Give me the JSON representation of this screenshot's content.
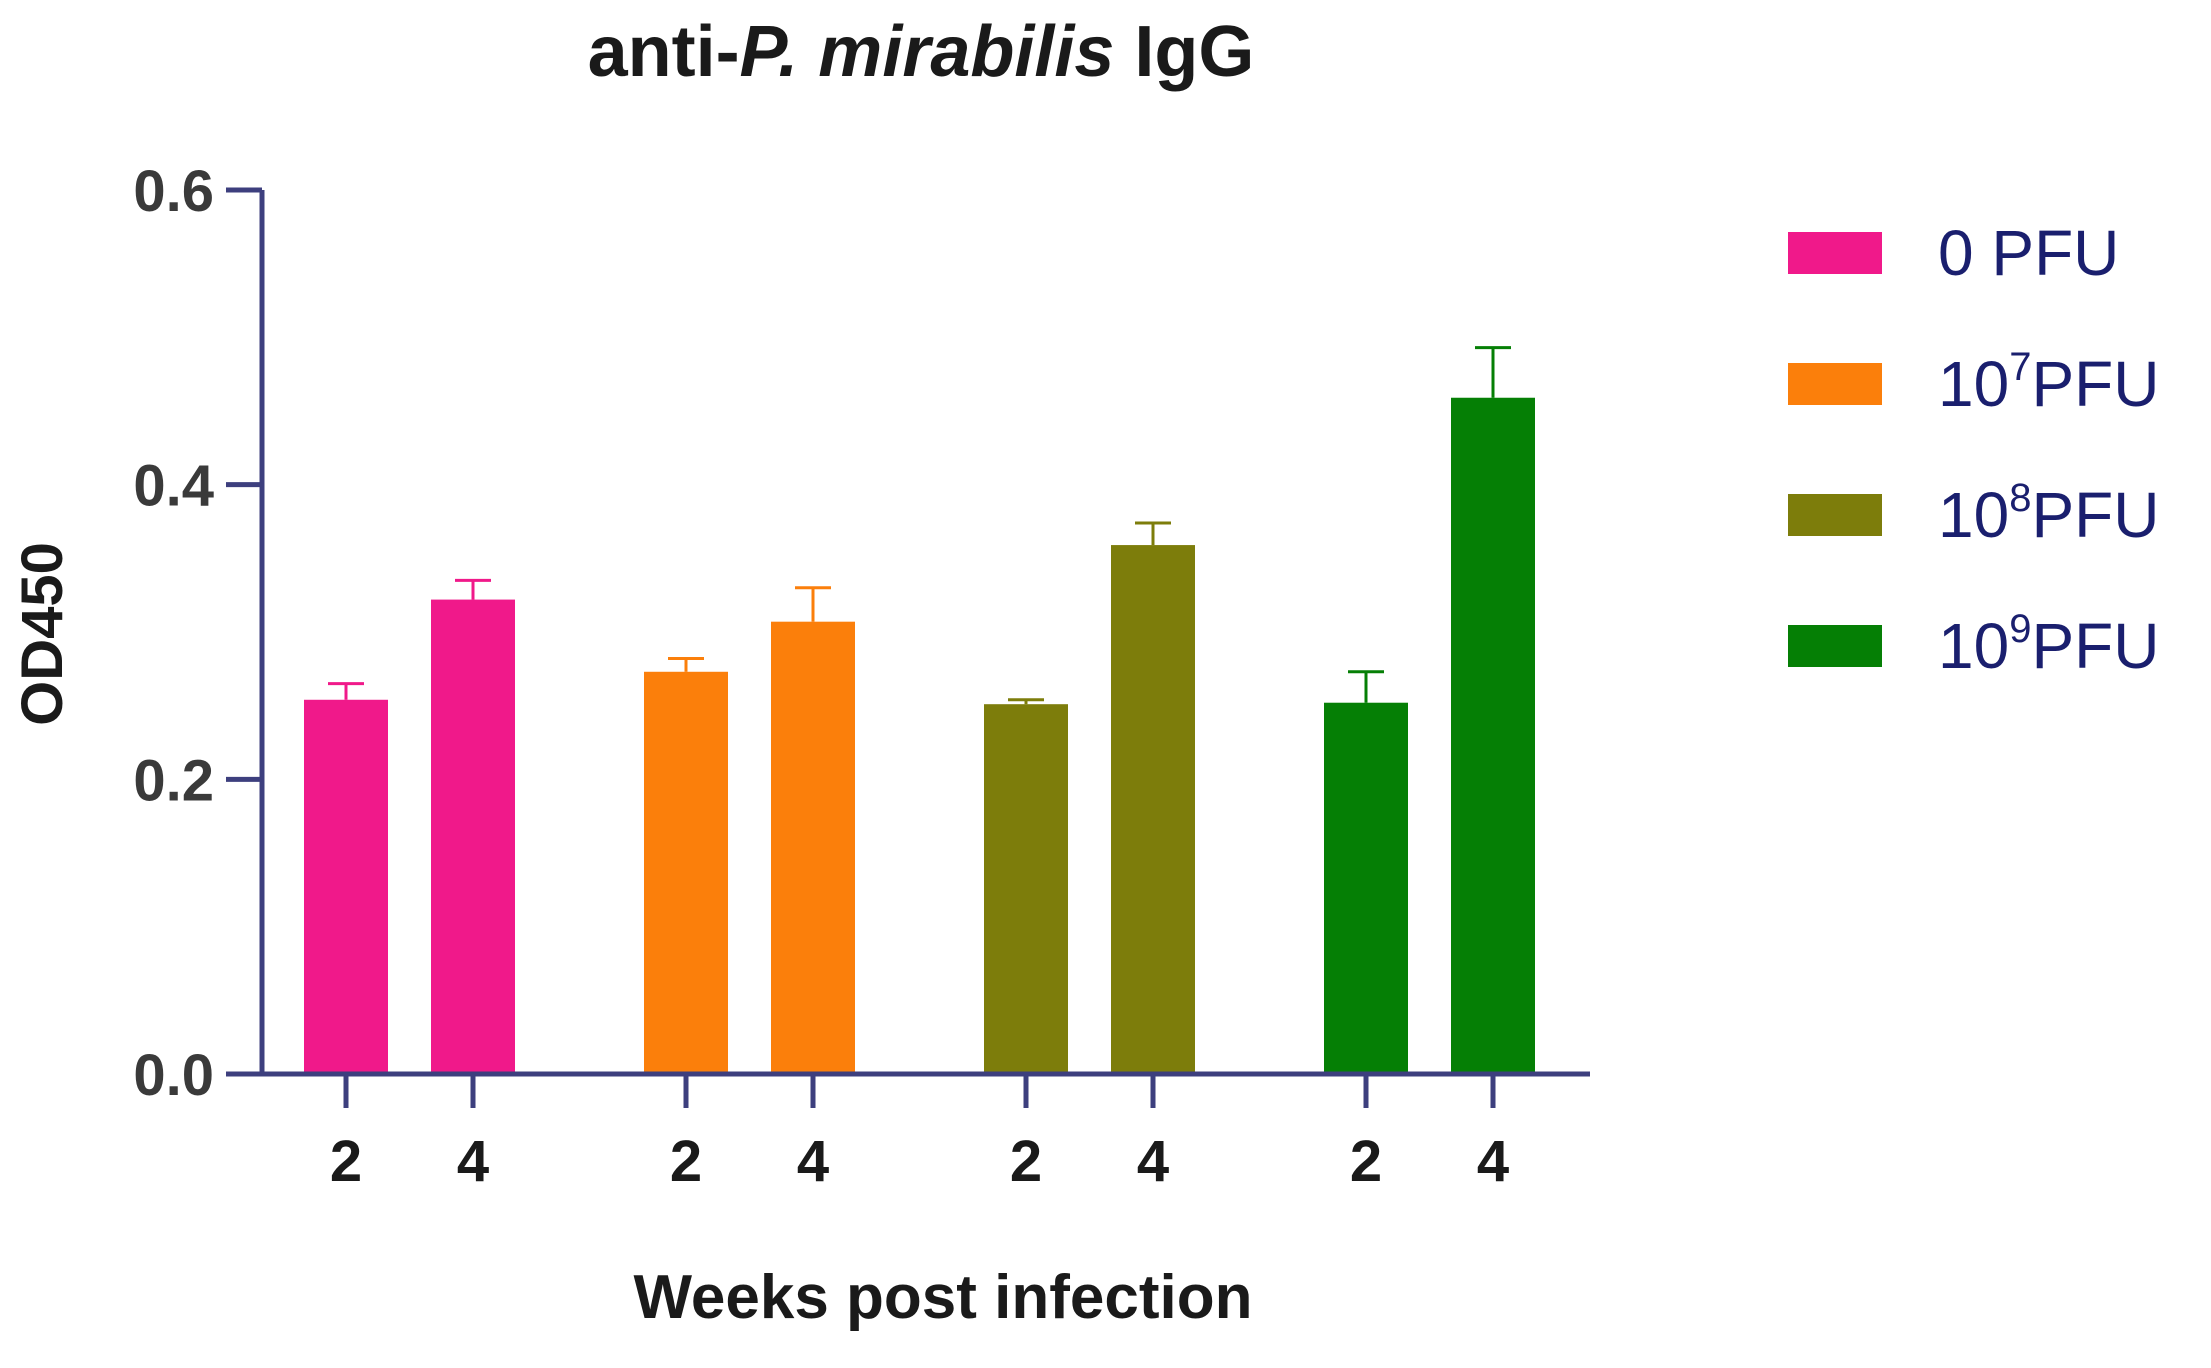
{
  "chart_data": {
    "type": "bar",
    "title_prefix": "anti-",
    "title_italic": "P. mirabilis",
    "title_suffix": " IgG",
    "xlabel": "Weeks post infection",
    "ylabel": "OD450",
    "ylim": [
      0,
      0.6
    ],
    "yticks": [
      0.0,
      0.2,
      0.4,
      0.6
    ],
    "ytick_labels": [
      "0.0",
      "0.2",
      "0.4",
      "0.6"
    ],
    "axis_color": "#3d3f7e",
    "groups": [
      {
        "name": "0 PFU",
        "legend_base": "0 PFU",
        "legend_exp": "",
        "legend_unit": "",
        "color": "#f0198a",
        "bars": [
          {
            "week": "2",
            "value": 0.254,
            "error": 0.011
          },
          {
            "week": "4",
            "value": 0.322,
            "error": 0.013
          }
        ]
      },
      {
        "name": "10^7 PFU",
        "legend_base": "10",
        "legend_exp": "7",
        "legend_unit": "PFU",
        "color": "#fb7f0b",
        "bars": [
          {
            "week": "2",
            "value": 0.273,
            "error": 0.009
          },
          {
            "week": "4",
            "value": 0.307,
            "error": 0.023
          }
        ]
      },
      {
        "name": "10^8 PFU",
        "legend_base": "10",
        "legend_exp": "8",
        "legend_unit": "PFU",
        "color": "#7d7d0b",
        "bars": [
          {
            "week": "2",
            "value": 0.251,
            "error": 0.003
          },
          {
            "week": "4",
            "value": 0.359,
            "error": 0.015
          }
        ]
      },
      {
        "name": "10^9 PFU",
        "legend_base": "10",
        "legend_exp": "9",
        "legend_unit": "PFU",
        "color": "#057f05",
        "bars": [
          {
            "week": "2",
            "value": 0.252,
            "error": 0.021
          },
          {
            "week": "4",
            "value": 0.459,
            "error": 0.034
          }
        ]
      }
    ]
  }
}
